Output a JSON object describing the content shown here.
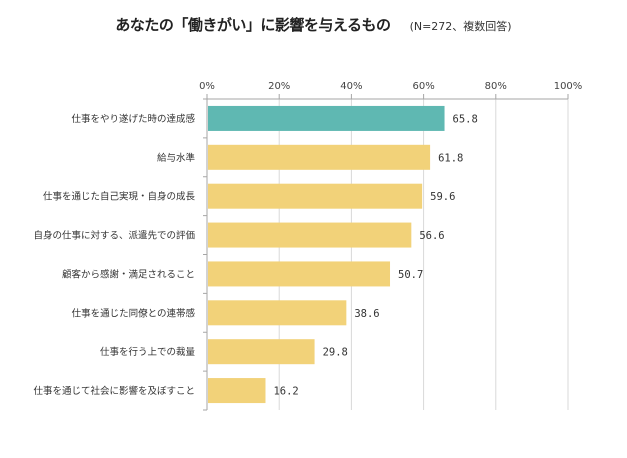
{
  "chart_data": {
    "type": "bar",
    "orientation": "horizontal",
    "title": "あなたの「働きがい」に影響を与えるもの",
    "subtitle": "(N=272、複数回答)",
    "xlabel": "",
    "ylabel": "",
    "xlim": [
      0,
      100
    ],
    "ticks": [
      0,
      20,
      40,
      60,
      80,
      100
    ],
    "tick_labels": [
      "0%",
      "20%",
      "40%",
      "60%",
      "80%",
      "100%"
    ],
    "grid": true,
    "categories": [
      "仕事をやり遂げた時の達成感",
      "給与水準",
      "仕事を通じた自己実現・自身の成長",
      "自身の仕事に対する、派遣先での評価",
      "顧客から感謝・満足されること",
      "仕事を通じた同僚との連帯感",
      "仕事を行う上での裁量",
      "仕事を通じて社会に影響を及ぼすこと"
    ],
    "values": [
      65.8,
      61.8,
      59.6,
      56.6,
      50.7,
      38.6,
      29.8,
      16.2
    ],
    "value_labels": [
      "65.8",
      "61.8",
      "59.6",
      "56.6",
      "50.7",
      "38.6",
      "29.8",
      "16.2"
    ],
    "highlight_index": 0,
    "colors": {
      "highlight": "#5fb8b2",
      "default": "#f2d279",
      "grid": "#d9d9d9",
      "axis": "#a6a6a6"
    }
  }
}
